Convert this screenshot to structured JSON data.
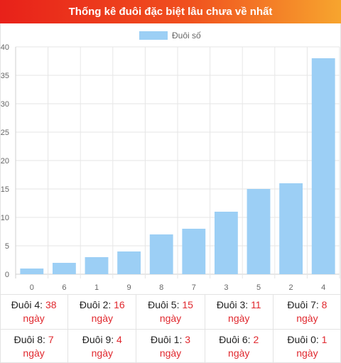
{
  "header": {
    "title": "Thống kê đuôi đặc biệt lâu chưa về nhất"
  },
  "colors": {
    "bar": "#9ccff5",
    "accent": "#e0282e"
  },
  "chart_data": {
    "type": "bar",
    "categories": [
      "0",
      "6",
      "1",
      "9",
      "8",
      "7",
      "3",
      "5",
      "2",
      "4"
    ],
    "series": [
      {
        "name": "Đuôi số",
        "values": [
          1,
          2,
          3,
          4,
          7,
          8,
          11,
          15,
          16,
          38
        ]
      }
    ],
    "ylim": [
      0,
      40
    ],
    "yticks": [
      "0",
      "5",
      "10",
      "15",
      "20",
      "25",
      "30",
      "35",
      "40"
    ],
    "grid": true,
    "legend": "top-center"
  },
  "stats": {
    "unit": "ngày",
    "rows": [
      [
        {
          "label": "Đuôi 4:",
          "value": "38"
        },
        {
          "label": "Đuôi 2:",
          "value": "16"
        },
        {
          "label": "Đuôi 5:",
          "value": "15"
        },
        {
          "label": "Đuôi 3:",
          "value": "11"
        },
        {
          "label": "Đuôi 7:",
          "value": "8"
        }
      ],
      [
        {
          "label": "Đuôi 8:",
          "value": "7"
        },
        {
          "label": "Đuôi 9:",
          "value": "4"
        },
        {
          "label": "Đuôi 1:",
          "value": "3"
        },
        {
          "label": "Đuôi 6:",
          "value": "2"
        },
        {
          "label": "Đuôi 0:",
          "value": "1"
        }
      ]
    ]
  }
}
